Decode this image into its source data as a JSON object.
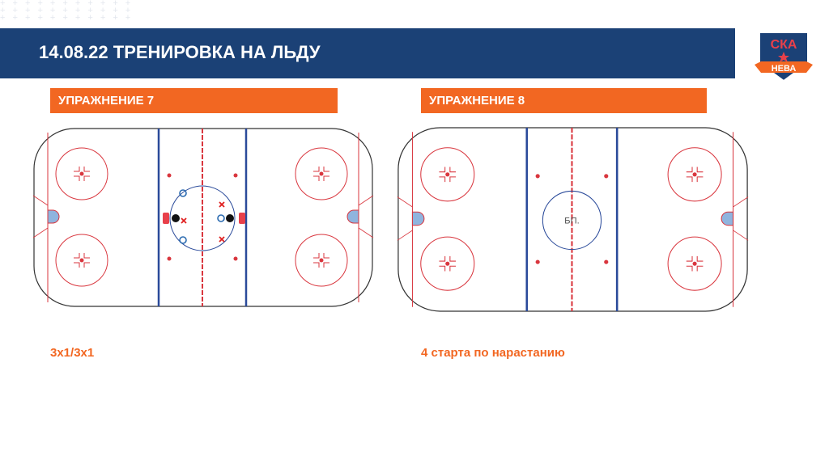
{
  "header": {
    "title": "14.08.22 ТРЕНИРОВКА  НА ЛЬДУ"
  },
  "logo": {
    "top_text": "СКА",
    "bottom_text": "НЕВА"
  },
  "exercises": [
    {
      "title": "УПРАЖНЕНИЕ 7",
      "caption": "3х1/3х1"
    },
    {
      "title": "УПРАЖНЕНИЕ 8",
      "caption": "4 старта по нарастанию",
      "center_label": "БП."
    }
  ],
  "colors": {
    "header": "#1b4176",
    "accent": "#f26722",
    "blue_line": "#2a4a9a",
    "red_line": "#d9363e"
  }
}
